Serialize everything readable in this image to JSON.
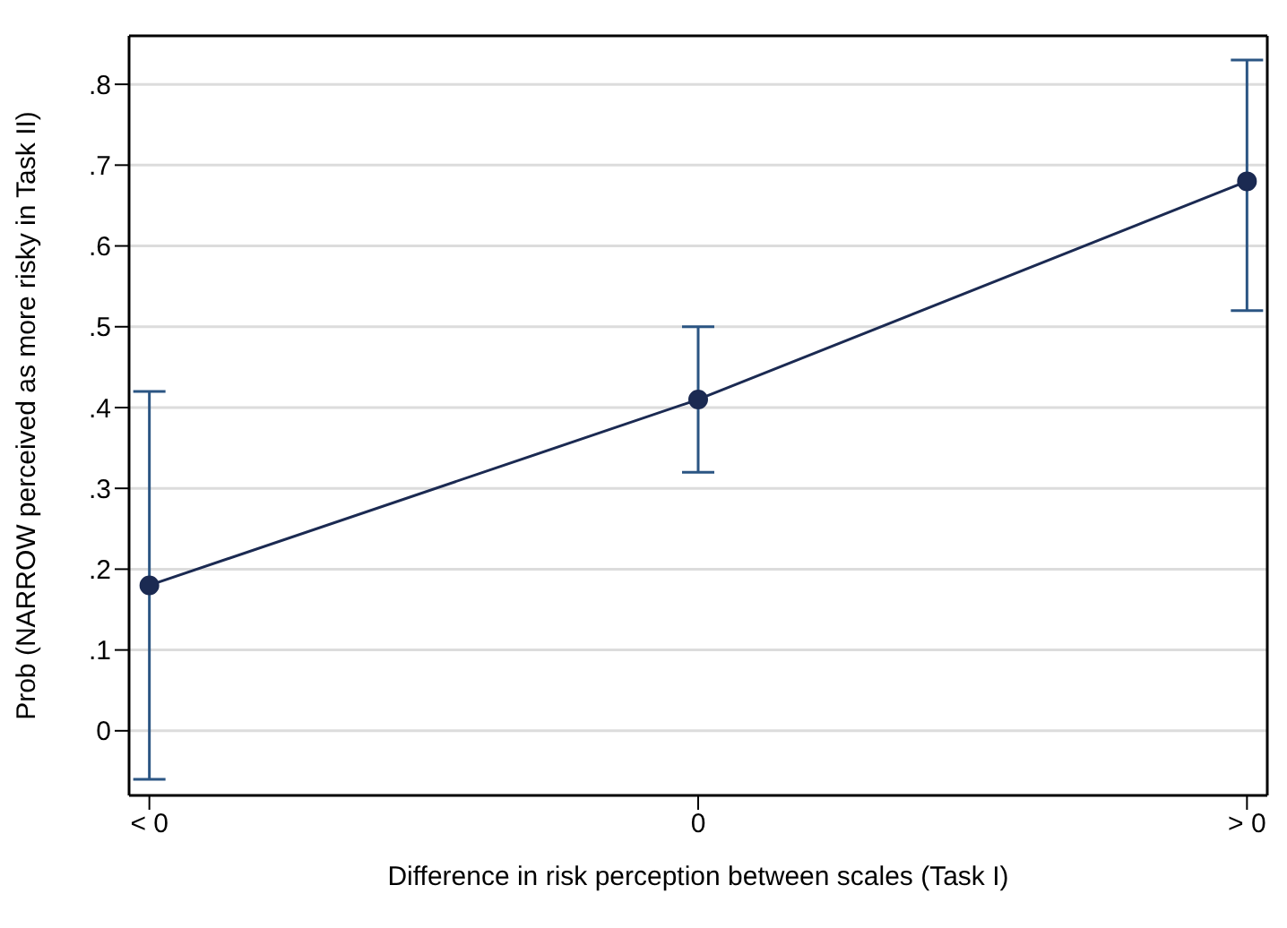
{
  "chart_data": {
    "type": "line",
    "xlabel": "Difference in risk perception between scales (Task I)",
    "ylabel": "Prob (NARROW perceived as more risky in Task II)",
    "categories": [
      "< 0",
      "0",
      "> 0"
    ],
    "series": [
      {
        "color": "#1b2a52",
        "values": [
          0.18,
          0.41,
          0.68
        ],
        "errors": [
          [
            -0.06,
            0.42
          ],
          [
            0.32,
            0.5
          ],
          [
            0.52,
            0.83
          ]
        ]
      }
    ],
    "ylim": [
      -0.08,
      0.86
    ],
    "yticks": [
      {
        "value": 0,
        "label": "0"
      },
      {
        "value": 0.1,
        "label": ".1"
      },
      {
        "value": 0.2,
        "label": ".2"
      },
      {
        "value": 0.3,
        "label": ".3"
      },
      {
        "value": 0.4,
        "label": ".4"
      },
      {
        "value": 0.5,
        "label": ".5"
      },
      {
        "value": 0.6,
        "label": ".6"
      },
      {
        "value": 0.7,
        "label": ".7"
      },
      {
        "value": 0.8,
        "label": ".8"
      }
    ],
    "grid": "y",
    "marker": "circle",
    "legend": false
  }
}
